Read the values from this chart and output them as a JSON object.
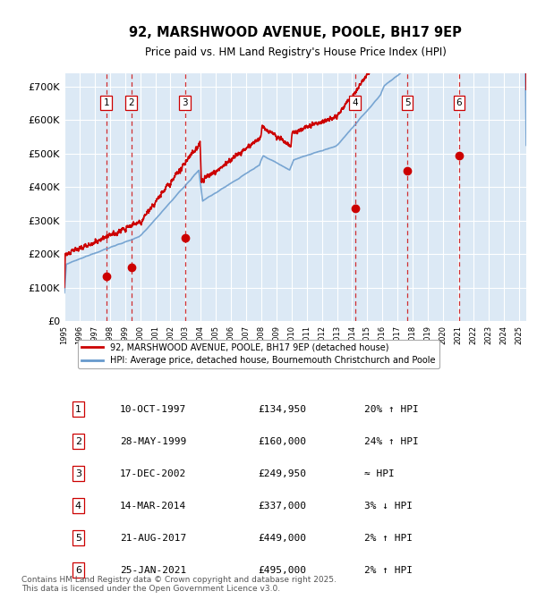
{
  "title": "92, MARSHWOOD AVENUE, POOLE, BH17 9EP",
  "subtitle": "Price paid vs. HM Land Registry's House Price Index (HPI)",
  "title_fontsize": 11,
  "subtitle_fontsize": 9.5,
  "background_color": "#dce9f5",
  "plot_bg_color": "#dce9f5",
  "fig_bg_color": "#ffffff",
  "sale_dates_x": [
    1997.77,
    1999.41,
    2002.96,
    2014.2,
    2017.64,
    2021.07
  ],
  "sale_prices": [
    134950,
    160000,
    249950,
    337000,
    449000,
    495000
  ],
  "sale_labels": [
    "1",
    "2",
    "3",
    "4",
    "5",
    "6"
  ],
  "sale_label_dates": [
    "10-OCT-1997",
    "28-MAY-1999",
    "17-DEC-2002",
    "14-MAR-2014",
    "21-AUG-2017",
    "25-JAN-2021"
  ],
  "sale_label_prices": [
    "£134,950",
    "£160,000",
    "£249,950",
    "£337,000",
    "£449,000",
    "£495,000"
  ],
  "sale_label_hpi": [
    "20% ↑ HPI",
    "24% ↑ HPI",
    "≈ HPI",
    "3% ↓ HPI",
    "2% ↑ HPI",
    "2% ↑ HPI"
  ],
  "ylim": [
    0,
    740000
  ],
  "xlim_start": 1995.0,
  "xlim_end": 2025.5,
  "red_line_color": "#cc0000",
  "blue_line_color": "#6699cc",
  "marker_color": "#cc0000",
  "dashed_line_color": "#cc0000",
  "legend_label_red": "92, MARSHWOOD AVENUE, POOLE, BH17 9EP (detached house)",
  "legend_label_blue": "HPI: Average price, detached house, Bournemouth Christchurch and Poole",
  "footer_text": "Contains HM Land Registry data © Crown copyright and database right 2025.\nThis data is licensed under the Open Government Licence v3.0.",
  "ytick_labels": [
    "£0",
    "£100K",
    "£200K",
    "£300K",
    "£400K",
    "£500K",
    "£600K",
    "£700K"
  ],
  "ytick_values": [
    0,
    100000,
    200000,
    300000,
    400000,
    500000,
    600000,
    700000
  ],
  "xtick_years": [
    1995,
    1996,
    1997,
    1998,
    1999,
    2000,
    2001,
    2002,
    2003,
    2004,
    2005,
    2006,
    2007,
    2008,
    2009,
    2010,
    2011,
    2012,
    2013,
    2014,
    2015,
    2016,
    2017,
    2018,
    2019,
    2020,
    2021,
    2022,
    2023,
    2024,
    2025
  ]
}
